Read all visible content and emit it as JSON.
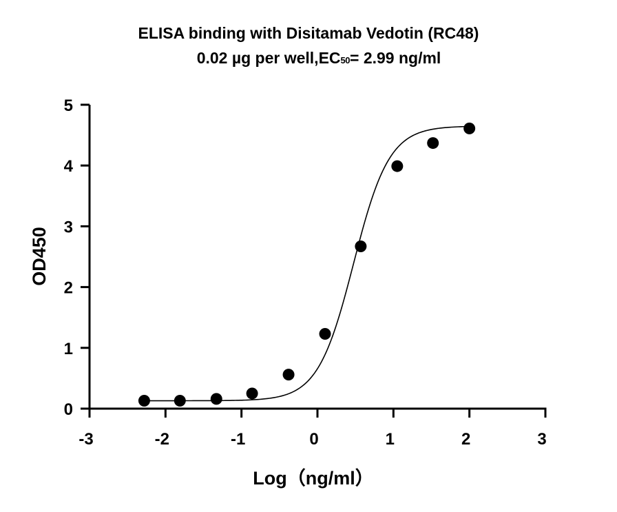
{
  "title": {
    "line1": "ELISA binding with Disitamab Vedotin (RC48)",
    "line2_prefix": "0.02 µg per well,EC",
    "line2_subscript": "50",
    "line2_suffix": "= 2.99 ng/ml"
  },
  "chart_data": {
    "type": "scatter",
    "title": "ELISA binding with Disitamab Vedotin (RC48) 0.02 µg per well,EC50= 2.99 ng/ml",
    "xlabel": "Log（ng/ml）",
    "ylabel": "OD450",
    "xlim": [
      -3,
      3
    ],
    "ylim": [
      0,
      5
    ],
    "xticks": [
      "-3",
      "-2",
      "-1",
      "0",
      "1",
      "2",
      "3"
    ],
    "yticks": [
      "0",
      "1",
      "2",
      "3",
      "4",
      "5"
    ],
    "grid": false,
    "legend": "none",
    "series": [
      {
        "x": [
          -2.28,
          -1.81,
          -1.33,
          -0.86,
          -0.38,
          0.1,
          0.57,
          1.05,
          1.52,
          2.0
        ],
        "y": [
          0.13,
          0.13,
          0.16,
          0.25,
          0.56,
          1.23,
          2.67,
          3.99,
          4.37,
          4.61
        ]
      }
    ],
    "fit_curve": {
      "model": "4PL",
      "bottom": 0.13,
      "top": 4.65,
      "log_ec50": 0.4757,
      "hill_slope": 1.85,
      "x_range": [
        -2.28,
        2.0
      ]
    },
    "colors": {
      "points": "#000000",
      "curve": "#000000",
      "axes": "#000000"
    }
  }
}
